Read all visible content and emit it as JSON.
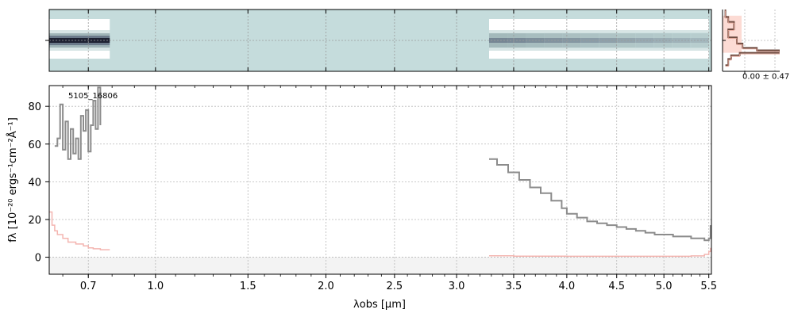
{
  "chart_data": [
    {
      "type": "heatmap",
      "panel": "2d-spectrum",
      "colormap": [
        "#ffffff",
        "#d7e5e5",
        "#9fb4b7",
        "#6b7a8a",
        "#1e2233"
      ],
      "background_color": "#c5dcdc",
      "gaps_microns": [
        [
          0.79,
          3.28
        ]
      ],
      "segments": [
        {
          "x_range": [
            0.55,
            0.79
          ]
        },
        {
          "x_range": [
            3.28,
            5.5
          ]
        }
      ]
    },
    {
      "type": "line",
      "panel": "1d-spectrum",
      "title": "5105_16806",
      "xlabel": "λobs [μm]",
      "ylabel": "fλ [10⁻²⁰ ergs⁻¹cm⁻²Å⁻¹]",
      "xaxis_scale": "sqrt",
      "xlim": [
        0.55,
        5.53
      ],
      "ylim": [
        -9,
        91
      ],
      "xticks": [
        0.7,
        1.0,
        1.5,
        2.0,
        2.5,
        3.0,
        3.5,
        4.0,
        4.5,
        5.0,
        5.5
      ],
      "xtick_labels": [
        "0.7",
        "1.0",
        "1.5",
        "2.0",
        "2.5",
        "3.0",
        "3.5",
        "4.0",
        "4.5",
        "5.0",
        "5.5"
      ],
      "yticks": [
        0,
        20,
        40,
        60,
        80
      ],
      "ytick_labels": [
        "0",
        "20",
        "40",
        "60",
        "80"
      ],
      "grid": true,
      "zero_band": [
        -9,
        0
      ],
      "series": [
        {
          "role": "flux",
          "color": "#8c8c8c",
          "x": [
            0.57,
            0.58,
            0.59,
            0.6,
            0.61,
            0.62,
            0.63,
            0.64,
            0.65,
            0.66,
            0.67,
            0.68,
            0.69,
            0.7,
            0.71,
            0.72,
            0.73,
            0.74,
            0.75,
            3.28,
            3.35,
            3.45,
            3.55,
            3.65,
            3.75,
            3.85,
            3.95,
            4.0,
            4.1,
            4.2,
            4.3,
            4.4,
            4.5,
            4.6,
            4.7,
            4.8,
            4.9,
            5.0,
            5.1,
            5.2,
            5.3,
            5.4,
            5.45,
            5.5,
            5.52
          ],
          "y": [
            59,
            63,
            81,
            57,
            72,
            52,
            68,
            55,
            63,
            52,
            75,
            67,
            78,
            56,
            70,
            83,
            68,
            90,
            70,
            52,
            49,
            45,
            41,
            37,
            34,
            30,
            26,
            23,
            21,
            19,
            18,
            17,
            16,
            15,
            14,
            13,
            12,
            12,
            11,
            11,
            10,
            10,
            9,
            10,
            17
          ]
        },
        {
          "role": "uncertainty",
          "color": "#f4b5b0",
          "x": [
            0.55,
            0.56,
            0.57,
            0.58,
            0.6,
            0.62,
            0.65,
            0.68,
            0.7,
            0.72,
            0.75,
            0.78,
            0.79,
            3.28,
            3.5,
            4.0,
            4.5,
            5.0,
            5.3,
            5.45,
            5.5,
            5.52
          ],
          "y": [
            24,
            17,
            14,
            12,
            10,
            8,
            7,
            6,
            5,
            4.5,
            4,
            4,
            4,
            0.8,
            0.6,
            0.5,
            0.5,
            0.5,
            0.7,
            1.5,
            3,
            5
          ]
        }
      ]
    },
    {
      "type": "line",
      "panel": "profile",
      "label": "0.00 ± 0.47",
      "series": [
        {
          "role": "profile",
          "color": "#6e4b40",
          "y": [
            0.0,
            0.12,
            0.2,
            0.32,
            0.45,
            0.55,
            0.62,
            0.66,
            0.7,
            0.74,
            0.8,
            0.9
          ],
          "x": [
            0.05,
            0.1,
            0.2,
            0.1,
            0.25,
            0.35,
            0.6,
            1.0,
            0.3,
            0.15,
            0.1,
            0.05
          ]
        }
      ]
    }
  ]
}
